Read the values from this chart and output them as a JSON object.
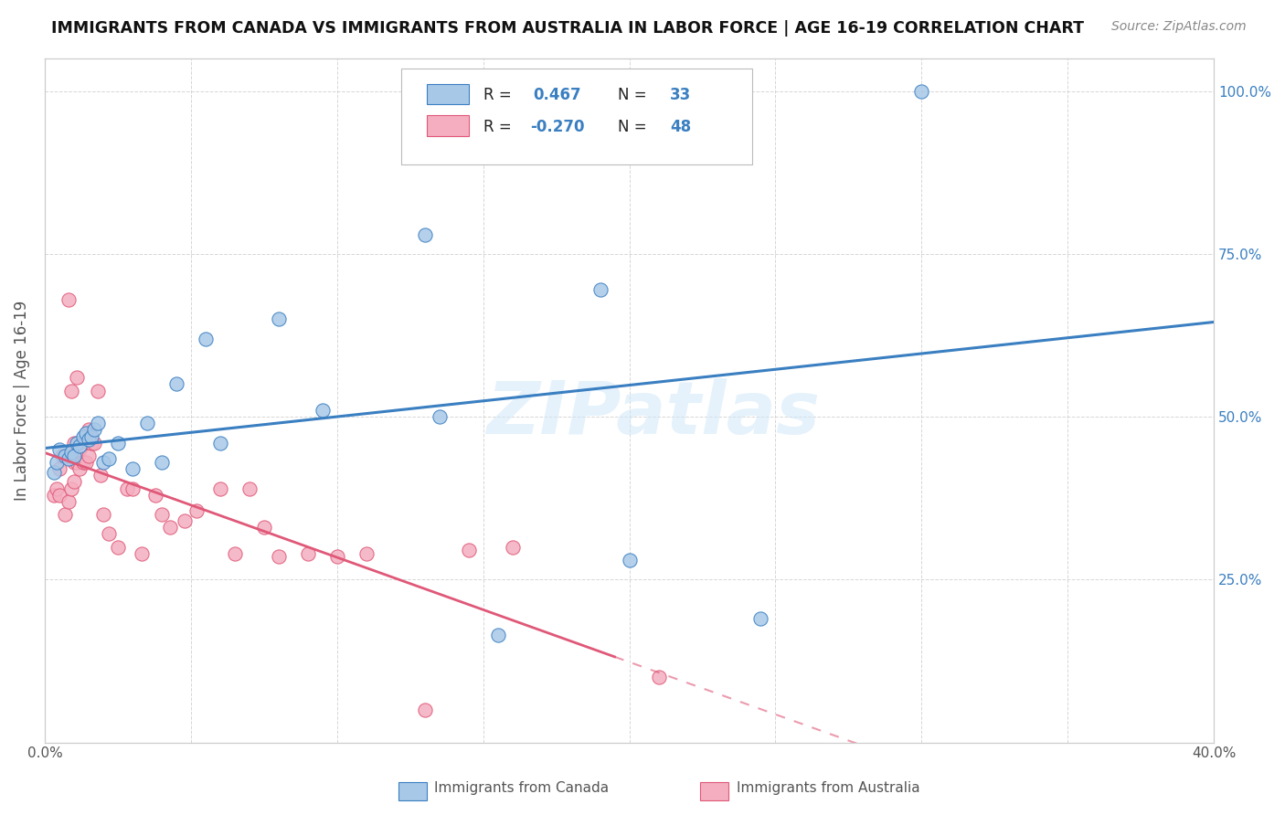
{
  "title": "IMMIGRANTS FROM CANADA VS IMMIGRANTS FROM AUSTRALIA IN LABOR FORCE | AGE 16-19 CORRELATION CHART",
  "source": "Source: ZipAtlas.com",
  "ylabel": "In Labor Force | Age 16-19",
  "xlim": [
    0.0,
    0.4
  ],
  "ylim": [
    0.0,
    1.05
  ],
  "canada_R": 0.467,
  "canada_N": 33,
  "australia_R": -0.27,
  "australia_N": 48,
  "canada_color": "#a8c8e8",
  "australia_color": "#f4aec0",
  "canada_line_color": "#3a7fc1",
  "australia_line_color": "#e05878",
  "watermark": "ZIPatlas",
  "canada_scatter_x": [
    0.003,
    0.004,
    0.005,
    0.007,
    0.008,
    0.009,
    0.01,
    0.011,
    0.012,
    0.013,
    0.014,
    0.015,
    0.016,
    0.017,
    0.018,
    0.02,
    0.022,
    0.025,
    0.03,
    0.035,
    0.04,
    0.045,
    0.055,
    0.06,
    0.08,
    0.095,
    0.13,
    0.135,
    0.155,
    0.19,
    0.2,
    0.245,
    0.3
  ],
  "canada_scatter_y": [
    0.415,
    0.43,
    0.45,
    0.44,
    0.435,
    0.445,
    0.44,
    0.46,
    0.455,
    0.47,
    0.475,
    0.465,
    0.47,
    0.48,
    0.49,
    0.43,
    0.435,
    0.46,
    0.42,
    0.49,
    0.43,
    0.55,
    0.62,
    0.46,
    0.65,
    0.51,
    0.78,
    0.5,
    0.165,
    0.695,
    0.28,
    0.19,
    1.0
  ],
  "australia_scatter_x": [
    0.003,
    0.004,
    0.005,
    0.005,
    0.006,
    0.007,
    0.008,
    0.008,
    0.009,
    0.009,
    0.01,
    0.01,
    0.01,
    0.011,
    0.011,
    0.012,
    0.012,
    0.013,
    0.014,
    0.015,
    0.015,
    0.016,
    0.017,
    0.018,
    0.019,
    0.02,
    0.022,
    0.025,
    0.028,
    0.03,
    0.033,
    0.038,
    0.04,
    0.043,
    0.048,
    0.052,
    0.06,
    0.065,
    0.07,
    0.075,
    0.08,
    0.09,
    0.1,
    0.11,
    0.13,
    0.145,
    0.16,
    0.21
  ],
  "australia_scatter_y": [
    0.38,
    0.39,
    0.38,
    0.42,
    0.44,
    0.35,
    0.37,
    0.68,
    0.39,
    0.54,
    0.4,
    0.43,
    0.46,
    0.43,
    0.56,
    0.42,
    0.45,
    0.43,
    0.43,
    0.44,
    0.48,
    0.46,
    0.46,
    0.54,
    0.41,
    0.35,
    0.32,
    0.3,
    0.39,
    0.39,
    0.29,
    0.38,
    0.35,
    0.33,
    0.34,
    0.355,
    0.39,
    0.29,
    0.39,
    0.33,
    0.285,
    0.29,
    0.285,
    0.29,
    0.05,
    0.295,
    0.3,
    0.1
  ],
  "background_color": "#ffffff",
  "grid_color": "#cccccc",
  "figsize": [
    14.06,
    8.92
  ],
  "dpi": 100
}
